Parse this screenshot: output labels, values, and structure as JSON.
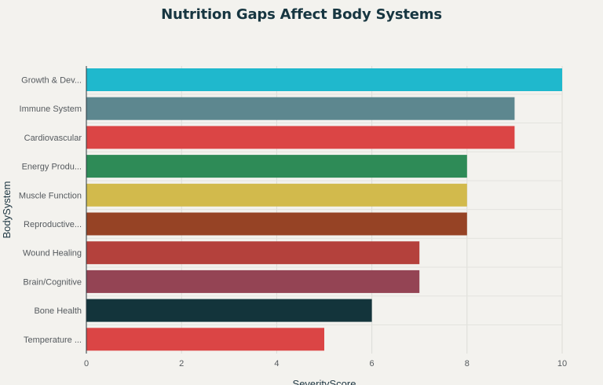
{
  "chart_data": {
    "type": "bar",
    "orientation": "horizontal",
    "title": "Nutrition Gaps Affect Body Systems",
    "xlabel": "SeverityScore",
    "ylabel": "BodySystem",
    "xlim": [
      0,
      10
    ],
    "xticks": [
      "0",
      "2",
      "4",
      "6",
      "8",
      "10"
    ],
    "grid": true,
    "categories": [
      "Growth & Dev...",
      "Immune System",
      "Cardiovascular",
      "Energy Produ...",
      "Muscle Function",
      "Reproductive...",
      "Wound Healing",
      "Brain/Cognitive",
      "Bone Health",
      "Temperature ..."
    ],
    "values": [
      10,
      9,
      9,
      8,
      8,
      8,
      7,
      7,
      6,
      5
    ],
    "colors": [
      "#1fb8cd",
      "#5d878f",
      "#db4545",
      "#2e8b57",
      "#d2ba4c",
      "#964325",
      "#b4413c",
      "#944454",
      "#13343b",
      "#db4545"
    ]
  }
}
